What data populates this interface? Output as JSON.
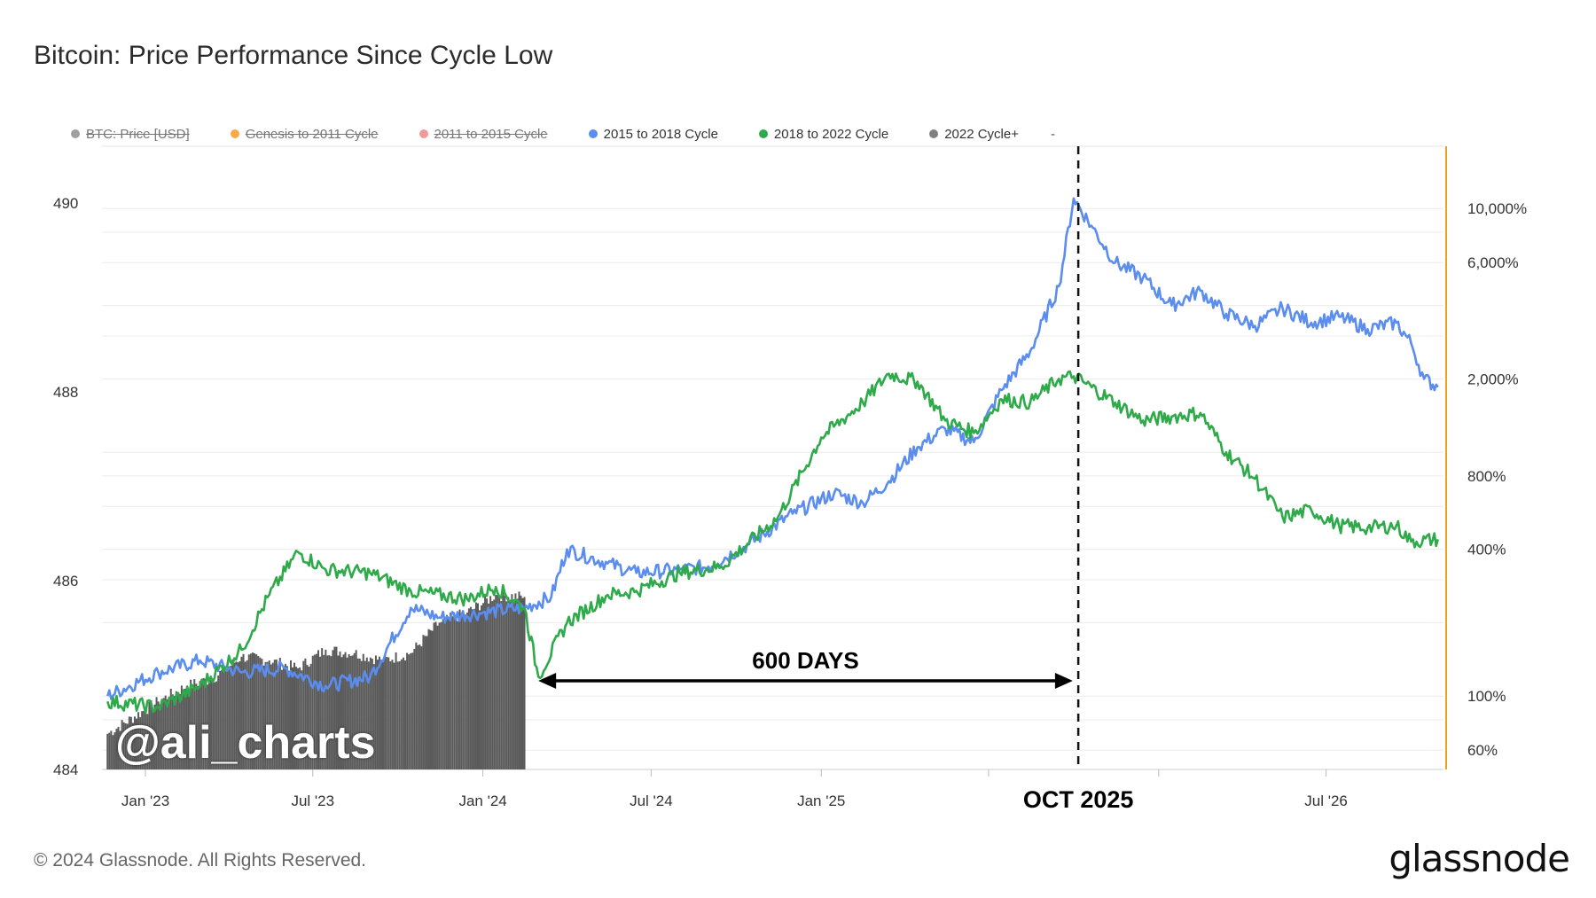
{
  "title": "Bitcoin: Price Performance Since Cycle Low",
  "legend": [
    {
      "label": "BTC: Price [USD]",
      "color": "#888888",
      "active": false
    },
    {
      "label": "Genesis to 2011 Cycle",
      "color": "#f7931a",
      "active": false
    },
    {
      "label": "2011 to 2015 Cycle",
      "color": "#f08080",
      "active": false
    },
    {
      "label": "2015 to 2018 Cycle",
      "color": "#5b8def",
      "active": true
    },
    {
      "label": "2018 to 2022 Cycle",
      "color": "#2eaa4a",
      "active": true
    },
    {
      "label": "2022 Cycle+",
      "color": "#808080",
      "active": true
    }
  ],
  "legend_extra": "-",
  "watermark": "@ali_charts",
  "footer": "© 2024 Glassnode. All Rights Reserved.",
  "brand": "glassnode",
  "annotations": {
    "span_label": "600 DAYS",
    "marker_label": "OCT 2025"
  },
  "chart_data": {
    "type": "line",
    "x_ticks": [
      "Jan '23",
      "Jul '23",
      "Jan '24",
      "Jul '24",
      "Jan '25",
      "OCT 2025",
      "Jul '26"
    ],
    "left_axis": {
      "ticks": [
        490,
        488,
        486,
        484
      ],
      "range": [
        484,
        490.6
      ]
    },
    "right_axis": {
      "scale": "log",
      "ticks": [
        "10,000%",
        "6,000%",
        "2,000%",
        "800%",
        "400%",
        "100%",
        "60%"
      ],
      "tick_values": [
        10000,
        6000,
        2000,
        800,
        400,
        100,
        60
      ],
      "range": [
        50,
        18000
      ]
    },
    "series": [
      {
        "name": "2015 to 2018 Cycle",
        "color": "#5b8def",
        "points": [
          [
            "2022-11-21",
            100
          ],
          [
            "2023-01-15",
            125
          ],
          [
            "2023-03-01",
            140
          ],
          [
            "2023-04-15",
            125
          ],
          [
            "2023-06-01",
            130
          ],
          [
            "2023-07-15",
            110
          ],
          [
            "2023-09-01",
            120
          ],
          [
            "2023-10-15",
            230
          ],
          [
            "2023-11-15",
            210
          ],
          [
            "2024-01-01",
            220
          ],
          [
            "2024-02-15",
            230
          ],
          [
            "2024-03-15",
            255
          ],
          [
            "2024-04-01",
            400
          ],
          [
            "2024-05-15",
            350
          ],
          [
            "2024-06-15",
            320
          ],
          [
            "2024-08-01",
            330
          ],
          [
            "2024-09-01",
            340
          ],
          [
            "2024-10-15",
            420
          ],
          [
            "2024-12-01",
            560
          ],
          [
            "2025-01-15",
            680
          ],
          [
            "2025-02-15",
            620
          ],
          [
            "2025-03-15",
            760
          ],
          [
            "2025-04-15",
            1050
          ],
          [
            "2025-05-15",
            1250
          ],
          [
            "2025-06-15",
            1100
          ],
          [
            "2025-07-15",
            1800
          ],
          [
            "2025-08-15",
            2600
          ],
          [
            "2025-09-15",
            4800
          ],
          [
            "2025-10-01",
            11000
          ],
          [
            "2025-10-20",
            8500
          ],
          [
            "2025-11-15",
            6000
          ],
          [
            "2025-12-15",
            5200
          ],
          [
            "2026-01-15",
            4000
          ],
          [
            "2026-02-15",
            4600
          ],
          [
            "2026-03-15",
            3700
          ],
          [
            "2026-04-15",
            3300
          ],
          [
            "2026-05-15",
            3900
          ],
          [
            "2026-06-15",
            3400
          ],
          [
            "2026-07-15",
            3600
          ],
          [
            "2026-08-15",
            3200
          ],
          [
            "2026-09-15",
            3400
          ],
          [
            "2026-10-01",
            2800
          ],
          [
            "2026-10-15",
            2000
          ],
          [
            "2026-10-30",
            1850
          ]
        ]
      },
      {
        "name": "2018 to 2022 Cycle",
        "color": "#2eaa4a",
        "points": [
          [
            "2022-11-21",
            95
          ],
          [
            "2023-01-15",
            90
          ],
          [
            "2023-03-01",
            110
          ],
          [
            "2023-04-15",
            155
          ],
          [
            "2023-05-15",
            260
          ],
          [
            "2023-06-15",
            390
          ],
          [
            "2023-07-15",
            330
          ],
          [
            "2023-09-01",
            320
          ],
          [
            "2023-10-15",
            270
          ],
          [
            "2023-12-15",
            250
          ],
          [
            "2024-01-15",
            280
          ],
          [
            "2024-02-15",
            230
          ],
          [
            "2024-03-01",
            120
          ],
          [
            "2024-04-01",
            200
          ],
          [
            "2024-05-15",
            260
          ],
          [
            "2024-06-15",
            270
          ],
          [
            "2024-08-01",
            320
          ],
          [
            "2024-09-15",
            340
          ],
          [
            "2024-11-15",
            540
          ],
          [
            "2025-01-01",
            1150
          ],
          [
            "2025-02-15",
            1600
          ],
          [
            "2025-03-15",
            2100
          ],
          [
            "2025-04-15",
            1950
          ],
          [
            "2025-05-15",
            1350
          ],
          [
            "2025-06-15",
            1200
          ],
          [
            "2025-07-15",
            1650
          ],
          [
            "2025-08-15",
            1600
          ],
          [
            "2025-09-15",
            2000
          ],
          [
            "2025-10-01",
            2050
          ],
          [
            "2025-11-15",
            1600
          ],
          [
            "2025-12-15",
            1350
          ],
          [
            "2026-01-15",
            1400
          ],
          [
            "2026-02-15",
            1450
          ],
          [
            "2026-03-15",
            1000
          ],
          [
            "2026-04-15",
            780
          ],
          [
            "2026-05-15",
            540
          ],
          [
            "2026-06-15",
            580
          ],
          [
            "2026-07-15",
            500
          ],
          [
            "2026-08-15",
            490
          ],
          [
            "2026-09-15",
            500
          ],
          [
            "2026-10-01",
            430
          ],
          [
            "2026-10-30",
            440
          ]
        ]
      },
      {
        "name": "2022 Cycle+",
        "color": "#555555",
        "type": "bars",
        "points": [
          [
            "2022-11-21",
            70
          ],
          [
            "2023-01-15",
            95
          ],
          [
            "2023-02-15",
            110
          ],
          [
            "2023-03-15",
            118
          ],
          [
            "2023-04-15",
            145
          ],
          [
            "2023-05-15",
            140
          ],
          [
            "2023-06-15",
            130
          ],
          [
            "2023-07-15",
            155
          ],
          [
            "2023-08-15",
            150
          ],
          [
            "2023-09-15",
            140
          ],
          [
            "2023-10-15",
            150
          ],
          [
            "2023-11-15",
            200
          ],
          [
            "2023-12-15",
            220
          ],
          [
            "2024-01-15",
            260
          ],
          [
            "2024-02-15",
            255
          ]
        ]
      }
    ],
    "x_range": [
      "2022-11-15",
      "2026-11-05"
    ],
    "vertical_marker": "2025-10-06",
    "span": {
      "from": "2024-03-01",
      "to": "2025-09-30",
      "label": "600 DAYS"
    },
    "grid": true
  }
}
